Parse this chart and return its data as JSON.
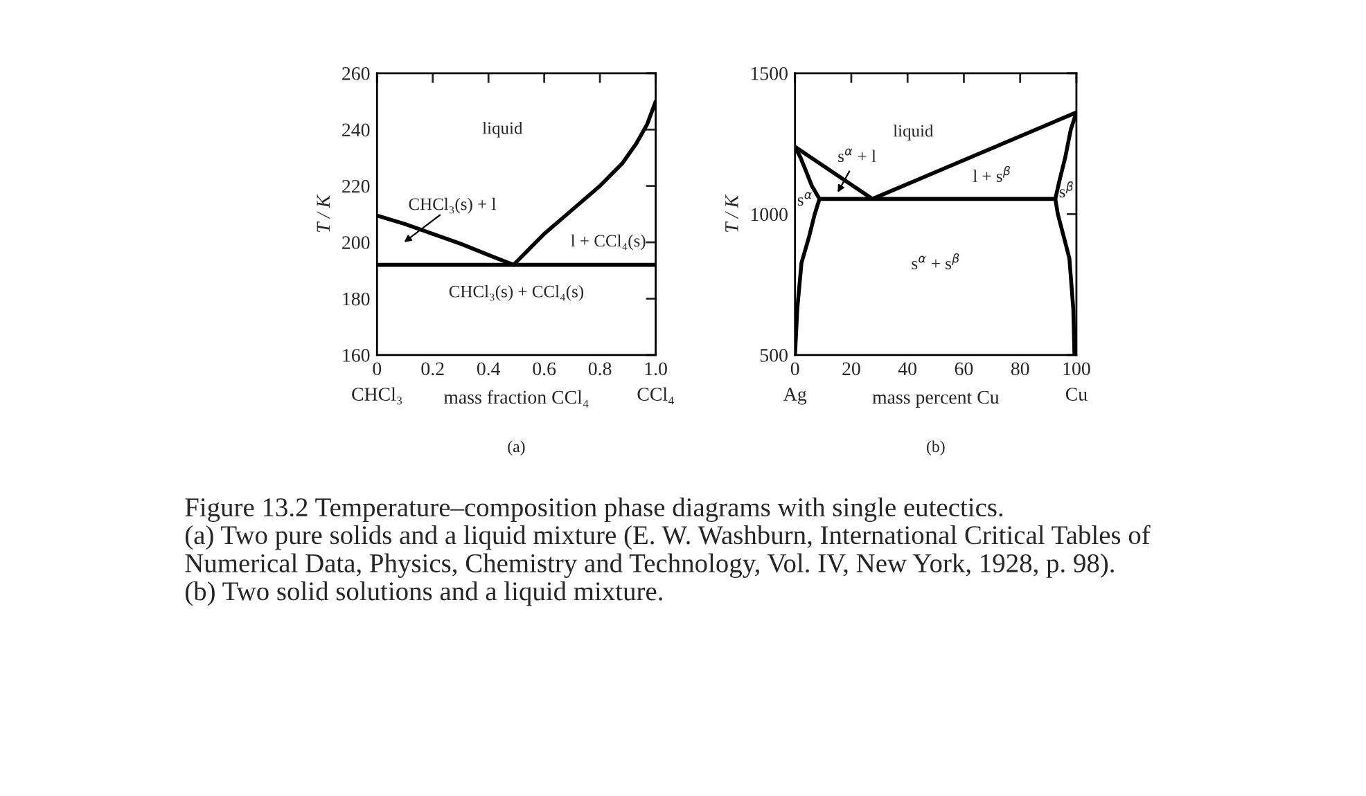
{
  "chart_data": [
    {
      "type": "line",
      "xlabel": "mass fraction CCl₄",
      "ylabel": "T / K",
      "xlim": [
        0,
        1
      ],
      "ylim": [
        160,
        260
      ],
      "xticks": [
        {
          "value": 0,
          "label": "0\nCHCl₃"
        },
        {
          "value": 0.2,
          "label": "0.2\n "
        },
        {
          "value": 0.4,
          "label": "0.4\n "
        },
        {
          "value": 0.6,
          "label": "0.6\n "
        },
        {
          "value": 0.8,
          "label": "0.8\n "
        },
        {
          "value": 1.0,
          "label": "1.0\nCCl₄"
        }
      ],
      "yticks": [
        160,
        180,
        200,
        220,
        240,
        260
      ],
      "series": [
        {
          "color": "#000000",
          "x": [
            0,
            0.1,
            0.2,
            0.3,
            0.4,
            0.49,
            0.6,
            0.7,
            0.8,
            0.88,
            0.93,
            0.97,
            1.0
          ],
          "values": [
            209.5,
            206.5,
            203,
            199.5,
            195.5,
            192,
            203,
            211.5,
            220,
            228,
            235,
            242,
            250
          ]
        },
        {
          "color": "#000000",
          "x": [
            0,
            1
          ],
          "values": [
            192,
            192
          ]
        }
      ],
      "annotations": [
        "(a)",
        "liquid",
        "CHCl₃(s) + l",
        "l + CCl₄(s)",
        "CHCl₃(s) + CCl₄(s)",
        "Figure 13.2 Temperature–composition phase diagrams with single eutectics.",
        "(a) Two pure solids and a liquid mixture (E. W. Washburn, International Critical Tables of Numerical Data, Physics, Chemistry and Technology, Vol. IV, New York, 1928, p. 98).",
        "(b) Two solid solutions and a liquid mixture."
      ]
    },
    {
      "type": "line",
      "xlabel": "mass percent Cu",
      "ylabel": "T / K",
      "xlim": [
        0,
        100
      ],
      "ylim": [
        500,
        1500
      ],
      "xticks": [
        {
          "value": 0,
          "label": "0\nAg"
        },
        {
          "value": 20,
          "label": "20\n "
        },
        {
          "value": 40,
          "label": "40\n "
        },
        {
          "value": 60,
          "label": "60\n "
        },
        {
          "value": 80,
          "label": "80\n "
        },
        {
          "value": 100,
          "label": "100\nCu"
        }
      ],
      "yticks": [
        500,
        1000,
        1500
      ],
      "series": [
        {
          "color": "#000000",
          "x": [
            0,
            27.5,
            100
          ],
          "values": [
            1239,
            1054,
            1361
          ]
        },
        {
          "color": "#000000",
          "x": [
            8.7,
            92.5
          ],
          "values": [
            1054,
            1054
          ]
        },
        {
          "color": "#000000",
          "x": [
            0,
            2,
            4,
            6,
            8.7,
            7,
            5,
            2.3,
            0.8,
            0
          ],
          "values": [
            1239,
            1200,
            1150,
            1100,
            1054,
            1000,
            920,
            827,
            663,
            500
          ]
        },
        {
          "color": "#000000",
          "x": [
            100,
            98,
            96,
            94,
            92.5,
            93.4,
            95.5,
            97.5,
            98.9,
            99.3
          ],
          "values": [
            1361,
            1300,
            1200,
            1120,
            1054,
            1000,
            920,
            843,
            663,
            500
          ]
        }
      ],
      "annotations": [
        "(b)",
        "liquid",
        "s$^{α}$ + l",
        "l + s$^{β}$",
        "s$^{α}$",
        "s$^{β}$",
        "s$^{α}$ + s$^{β}$"
      ]
    }
  ]
}
